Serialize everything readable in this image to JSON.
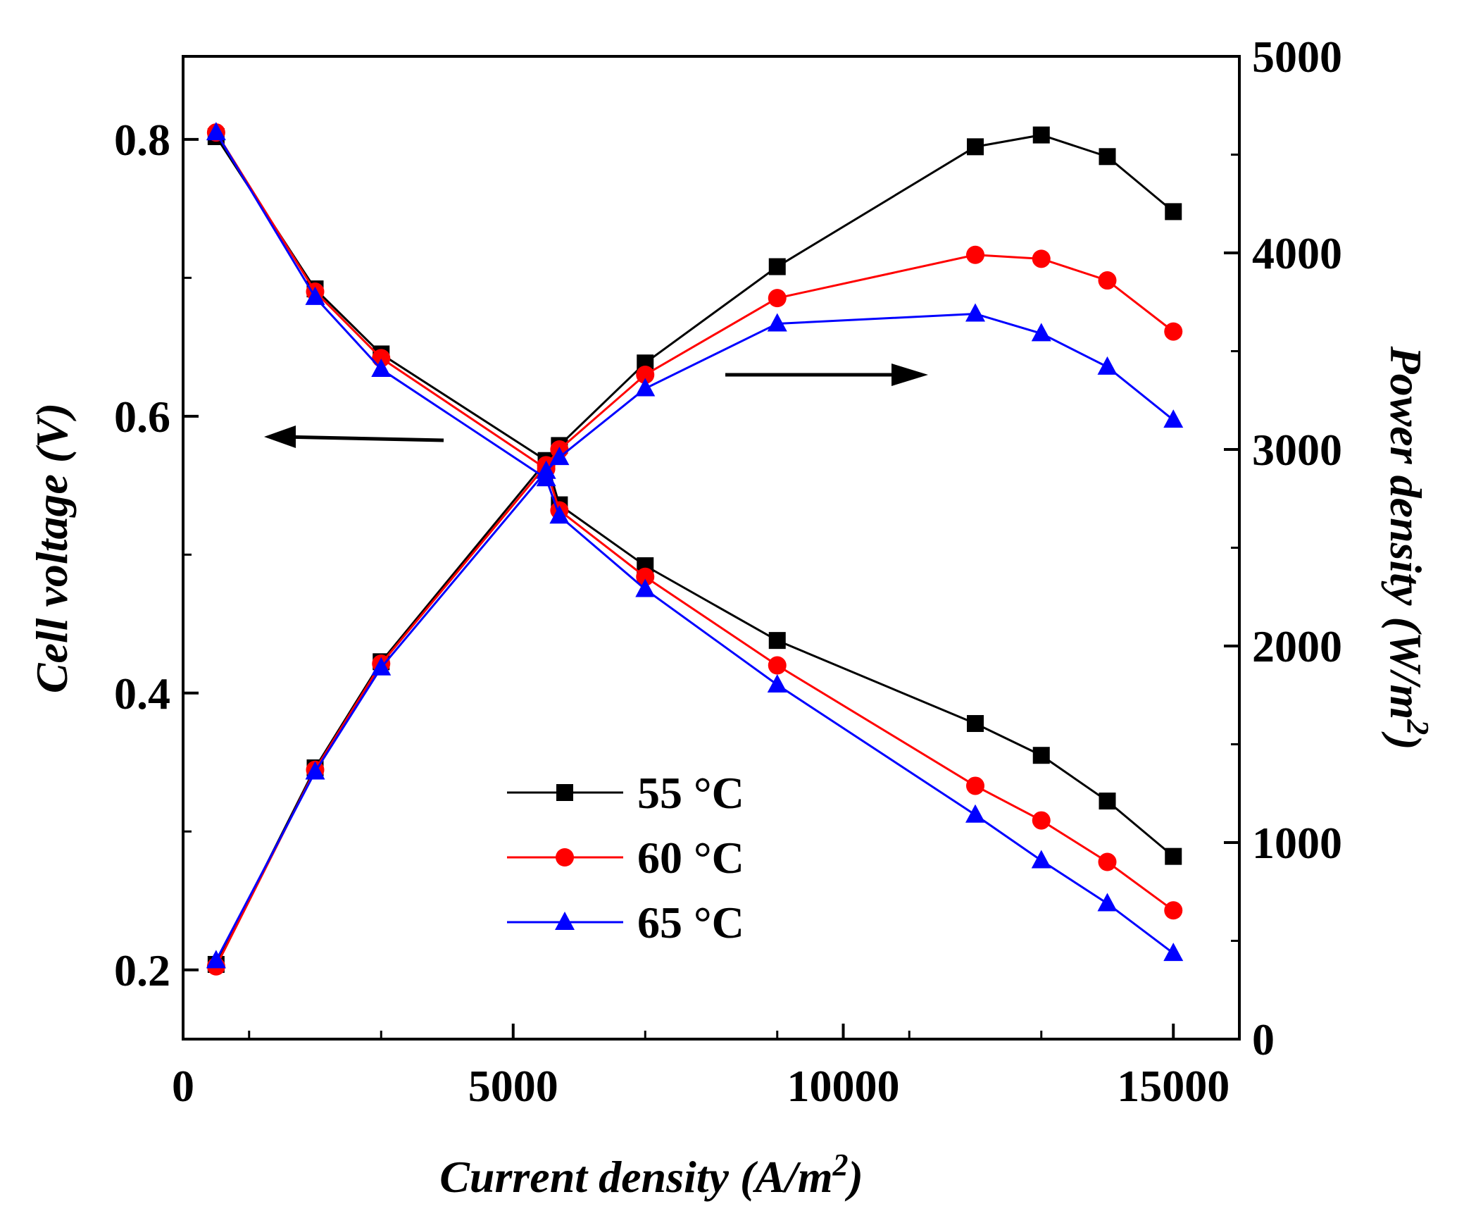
{
  "chart_data": {
    "type": "line",
    "title": "",
    "x": [
      500,
      2000,
      3000,
      5500,
      5700,
      7000,
      9000,
      12000,
      13000,
      14000,
      15000
    ],
    "xlabel": "Current density (A/m",
    "xlabel_sup": "2",
    "xlabel_end": ")",
    "xlim": [
      0,
      16000
    ],
    "xticks": [
      0,
      5000,
      10000,
      15000
    ],
    "xtick_labels": [
      "0",
      "5000",
      "10000",
      "15000"
    ],
    "ylabel": "Cell voltage (V)",
    "ylim": [
      0.15,
      0.86
    ],
    "yticks": [
      0.2,
      0.4,
      0.6,
      0.8
    ],
    "ytick_labels": [
      "0.2",
      "0.4",
      "0.6",
      "0.8"
    ],
    "y2label": "Power density (W/m",
    "y2label_sup": "2",
    "y2label_end": ")",
    "y2lim": [
      0,
      5000
    ],
    "y2ticks": [
      0,
      1000,
      2000,
      3000,
      4000,
      5000
    ],
    "y2tick_labels": [
      "0",
      "1000",
      "2000",
      "3000",
      "4000",
      "5000"
    ],
    "legend_position": "lower-center",
    "series": [
      {
        "name": "55 °C",
        "color": "#000000",
        "marker": "square",
        "voltage": [
          0.802,
          0.692,
          0.645,
          0.568,
          0.536,
          0.492,
          0.438,
          0.378,
          0.355,
          0.322,
          0.282
        ],
        "power": [
          380,
          1380,
          1920,
          2940,
          3020,
          3440,
          3930,
          4540,
          4600,
          4490,
          4210
        ]
      },
      {
        "name": "60 °C",
        "color": "#ff0000",
        "marker": "circle",
        "voltage": [
          0.805,
          0.69,
          0.642,
          0.562,
          0.532,
          0.484,
          0.42,
          0.333,
          0.308,
          0.278,
          0.243
        ],
        "power": [
          370,
          1370,
          1910,
          2920,
          3000,
          3380,
          3770,
          3990,
          3970,
          3860,
          3600
        ]
      },
      {
        "name": "65 °C",
        "color": "#0000ff",
        "marker": "triangle",
        "voltage": [
          0.805,
          0.686,
          0.634,
          0.555,
          0.528,
          0.475,
          0.406,
          0.312,
          0.279,
          0.248,
          0.212
        ],
        "power": [
          400,
          1360,
          1890,
          2890,
          2960,
          3310,
          3640,
          3690,
          3590,
          3420,
          3150
        ]
      }
    ]
  }
}
